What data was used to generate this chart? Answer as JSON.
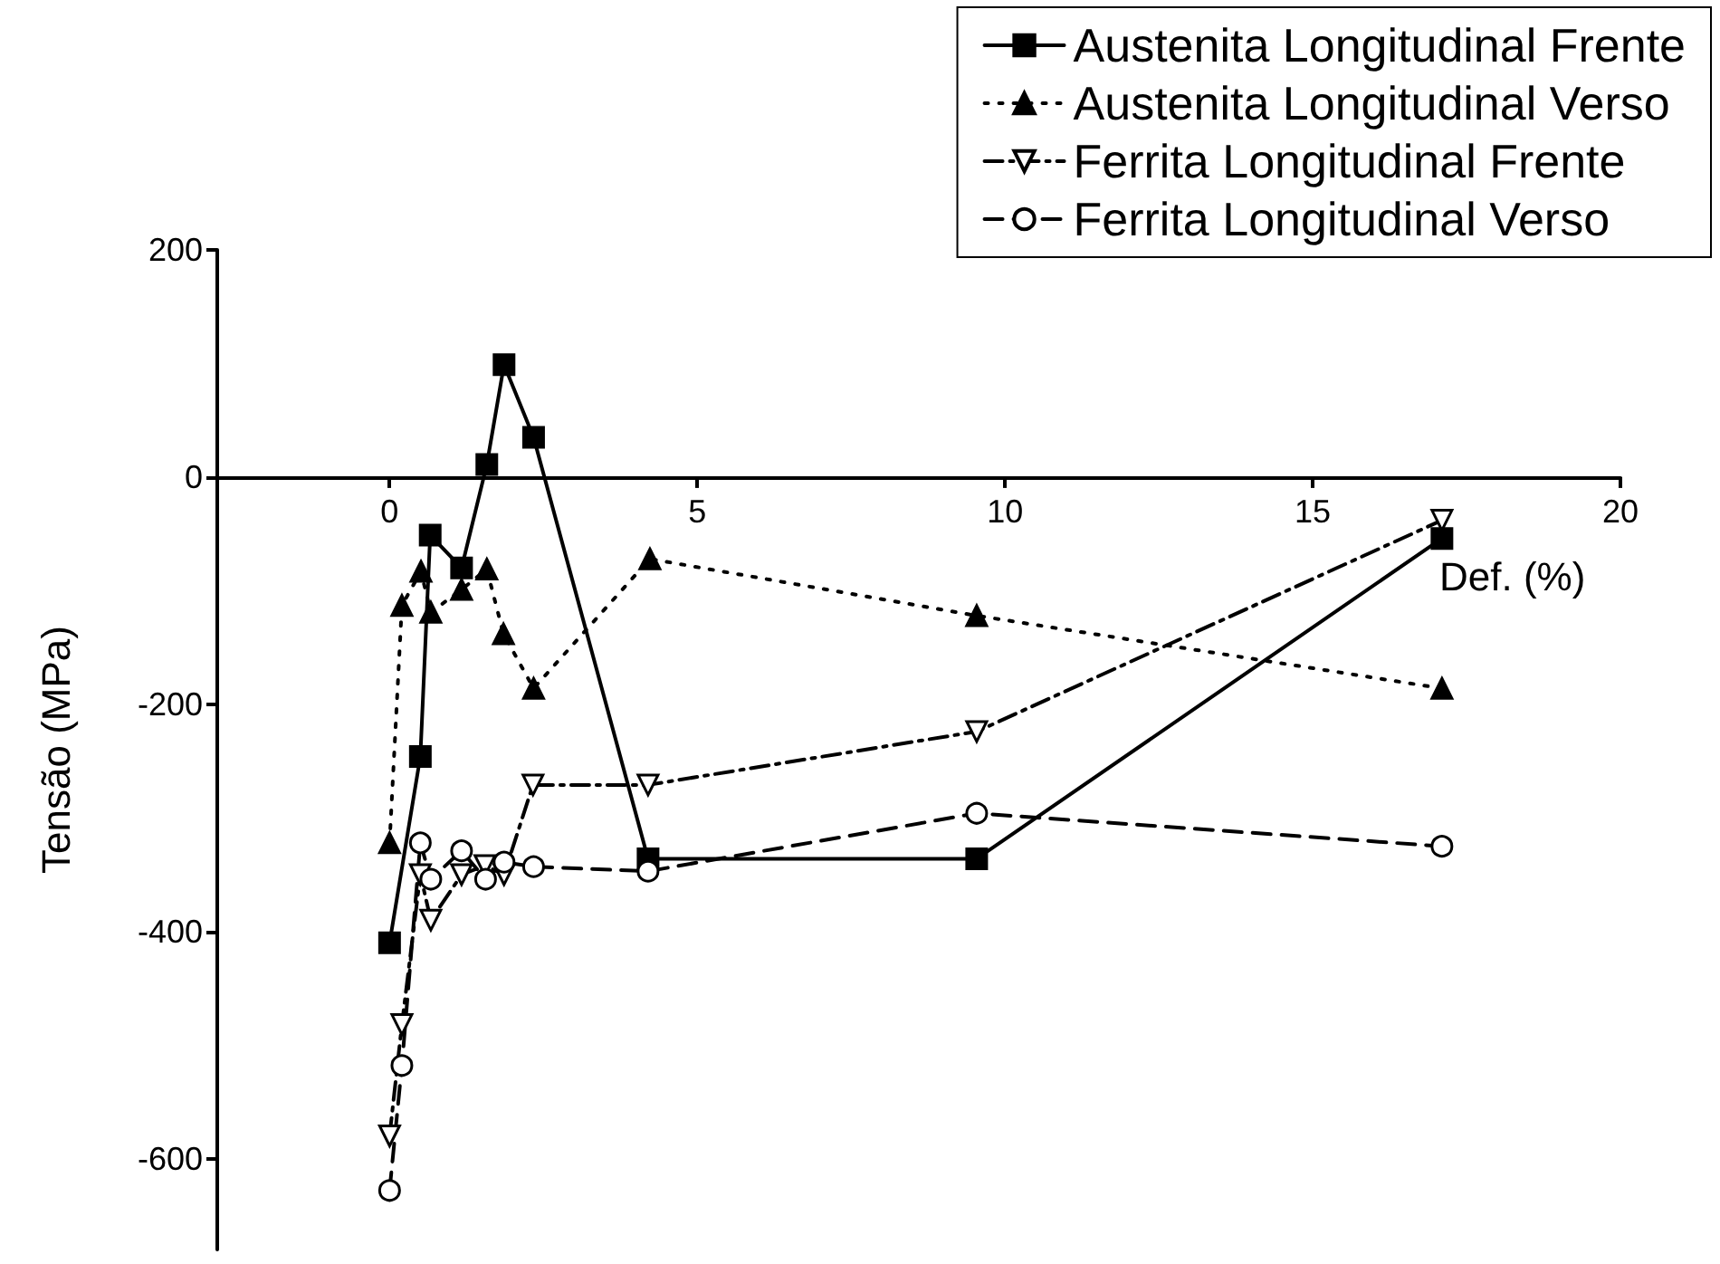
{
  "chart_data": {
    "type": "line",
    "xlabel": "Def. (%)",
    "ylabel": "Tensão (MPa)",
    "xlim": [
      -2.8,
      20
    ],
    "xticks": [
      0,
      5,
      10,
      15,
      20
    ],
    "ylim": [
      -680,
      200
    ],
    "yticks": [
      -600,
      -400,
      -200,
      0,
      200
    ],
    "grid": false,
    "legend": "top right",
    "series": [
      {
        "name": "Austenita Longitudinal Frente",
        "color": "#000000",
        "marker": "square",
        "line_style": "solid",
        "x": [
          0,
          0.5,
          0.66,
          1.17,
          1.58,
          1.86,
          2.34,
          4.2,
          9.54,
          17.1
        ],
        "values": [
          -410,
          -246,
          -51,
          -80,
          11,
          99,
          35,
          -336,
          -336,
          -54
        ]
      },
      {
        "name": "Austenita Longitudinal Verso",
        "color": "#000000",
        "marker": "triangle",
        "line_style": "dotted",
        "x": [
          0,
          0.2,
          0.51,
          0.67,
          1.17,
          1.58,
          1.85,
          2.34,
          4.23,
          9.54,
          17.1
        ],
        "values": [
          -322,
          -113,
          -83,
          -119,
          -99,
          -81,
          -138,
          -186,
          -72,
          -122,
          -186
        ]
      },
      {
        "name": "Ferrita Longitudinal Frente",
        "color": "#000000",
        "marker": "triangle-down-open",
        "line_style": "dashdot",
        "x": [
          0,
          0.2,
          0.5,
          0.67,
          1.17,
          1.55,
          1.86,
          2.33,
          4.2,
          9.54,
          17.1
        ],
        "values": [
          -580,
          -482,
          -350,
          -390,
          -350,
          -342,
          -350,
          -271,
          -271,
          -224,
          -38
        ]
      },
      {
        "name": "Ferrita Longitudinal Verso",
        "color": "#000000",
        "marker": "circle-open",
        "line_style": "dashed",
        "x": [
          0,
          0.2,
          0.5,
          0.67,
          1.17,
          1.56,
          1.86,
          2.34,
          4.2,
          9.54,
          17.1
        ],
        "values": [
          -628,
          -518,
          -322,
          -354,
          -329,
          -354,
          -339,
          -343,
          -347,
          -296,
          -325
        ]
      }
    ]
  }
}
